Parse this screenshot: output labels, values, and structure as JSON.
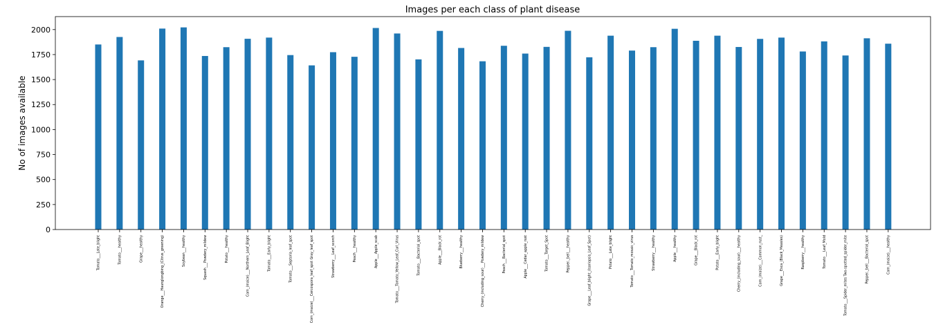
{
  "chart_data": {
    "type": "bar",
    "title": "Images per each class of plant disease",
    "xlabel": "",
    "ylabel": "No of images available",
    "ylim": [
      0,
      2130
    ],
    "yticks": [
      0,
      250,
      500,
      750,
      1000,
      1250,
      1500,
      1750,
      2000
    ],
    "bar_color": "#1f77b4",
    "grid": false,
    "categories": [
      "Tomato___Late_blight",
      "Tomato___healthy",
      "Grape___healthy",
      "Orange___Haunglongbing_(Citrus_greening)",
      "Soybean___healthy",
      "Squash___Powdery_mildew",
      "Potato___healthy",
      "Corn_(maize)___Northern_Leaf_Blight",
      "Tomato___Early_blight",
      "Tomato___Septoria_leaf_spot",
      "Corn_(maize)___Cercospora_leaf_spot Gray_leaf_spot",
      "Strawberry___Leaf_scorch",
      "Peach___healthy",
      "Apple___Apple_scab",
      "Tomato___Tomato_Yellow_Leaf_Curl_Virus",
      "Tomato___Bacterial_spot",
      "Apple___Black_rot",
      "Blueberry___healthy",
      "Cherry_(including_sour)___Powdery_mildew",
      "Peach___Bacterial_spot",
      "Apple___Cedar_apple_rust",
      "Tomato___Target_Spot",
      "Pepper,_bell___healthy",
      "Grape___Leaf_blight_(Isariopsis_Leaf_Spot)",
      "Potato___Late_blight",
      "Tomato___Tomato_mosaic_virus",
      "Strawberry___healthy",
      "Apple___healthy",
      "Grape___Black_rot",
      "Potato___Early_blight",
      "Cherry_(including_sour)___healthy",
      "Corn_(maize)___Common_rust_",
      "Grape___Esca_(Black_Measles)",
      "Raspberry___healthy",
      "Tomato___Leaf_Mold",
      "Tomato___Spider_mites Two-spotted_spider_mite",
      "Pepper,_bell___Bacterial_spot",
      "Corn_(maize)___healthy"
    ],
    "values": [
      1851,
      1926,
      1692,
      2010,
      2022,
      1736,
      1824,
      1908,
      1920,
      1745,
      1642,
      1774,
      1728,
      2016,
      1961,
      1702,
      1987,
      1816,
      1683,
      1838,
      1760,
      1827,
      1988,
      1723,
      1939,
      1790,
      1824,
      2008,
      1888,
      1939,
      1826,
      1907,
      1920,
      1781,
      1882,
      1741,
      1913,
      1859
    ]
  }
}
